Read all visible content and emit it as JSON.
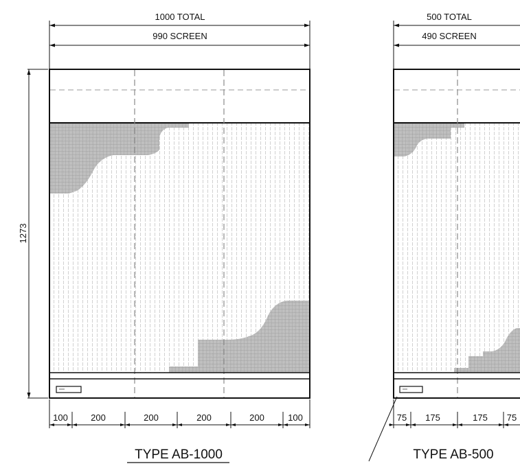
{
  "drawings": [
    {
      "type_label": "TYPE AB-1000",
      "total_label": "1000 TOTAL",
      "screen_label": "990 SCREEN",
      "height_label": "1273",
      "bottom_segments": [
        "100",
        "200",
        "200",
        "200",
        "200",
        "100"
      ]
    },
    {
      "type_label": "TYPE AB-500",
      "total_label": "500 TOTAL",
      "screen_label": "490 SCREEN",
      "bottom_segments": [
        "75",
        "175",
        "175",
        "75"
      ]
    }
  ],
  "colors": {
    "line": "#111111",
    "grid": "#9a9a9a",
    "dashed": "#9a9a9a",
    "shade": "#b9b9b9"
  }
}
